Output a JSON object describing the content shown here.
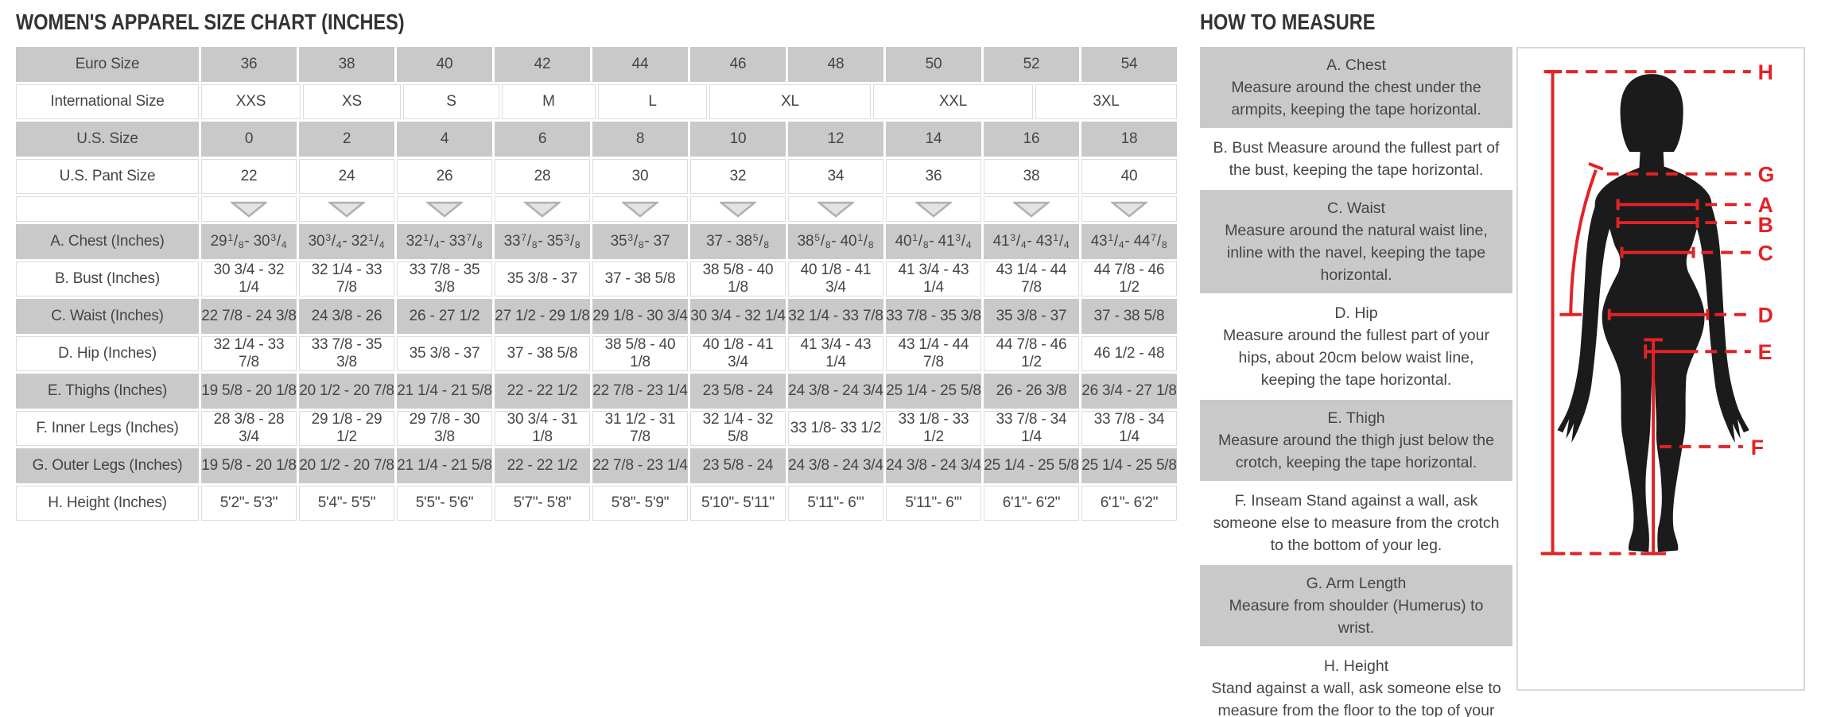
{
  "chart": {
    "title": "WOMEN'S APPAREL SIZE CHART (INCHES)",
    "header_rows": {
      "euro": {
        "label": "Euro Size",
        "values": [
          "36",
          "38",
          "40",
          "42",
          "44",
          "46",
          "48",
          "50",
          "52",
          "54"
        ]
      },
      "international": {
        "label": "International Size",
        "values": [
          "XXS",
          "XS",
          "S",
          "M",
          "L",
          "XL",
          "XXL",
          "3XL"
        ]
      },
      "us": {
        "label": "U.S. Size",
        "values": [
          "0",
          "2",
          "4",
          "6",
          "8",
          "10",
          "12",
          "14",
          "16",
          "18"
        ]
      },
      "pant": {
        "label": "U.S. Pant Size",
        "values": [
          "22",
          "24",
          "26",
          "28",
          "30",
          "32",
          "34",
          "36",
          "38",
          "40"
        ]
      }
    },
    "dropdown_icon": "triangle-down",
    "measurement_rows": [
      {
        "label": "A. Chest (Inches)",
        "fractions": true,
        "values": [
          "29 1/8 - 30 3/4",
          "30 3/4 - 32 1/4",
          "32 1/4 - 33 7/8",
          "33 7/8 - 35 3/8",
          "35 3/8 - 37",
          "37 - 38 5/8",
          "38 5/8 - 40 1/8",
          "40 1/8 - 41 3/4",
          "41 3/4 - 43 1/4",
          "43 1/4 - 44 7/8"
        ]
      },
      {
        "label": "B. Bust (Inches)",
        "fractions": false,
        "values": [
          "30 3/4 - 32 1/4",
          "32 1/4 - 33 7/8",
          "33 7/8 - 35 3/8",
          "35 3/8 - 37",
          "37 - 38 5/8",
          "38 5/8 - 40 1/8",
          "40 1/8 - 41 3/4",
          "41 3/4 - 43 1/4",
          "43 1/4 - 44 7/8",
          "44 7/8 - 46 1/2"
        ]
      },
      {
        "label": "C. Waist (Inches)",
        "fractions": false,
        "values": [
          "22 7/8 - 24 3/8",
          "24 3/8 - 26",
          "26 - 27 1/2",
          "27 1/2 - 29 1/8",
          "29 1/8 - 30 3/4",
          "30 3/4 - 32 1/4",
          "32 1/4 - 33 7/8",
          "33 7/8 - 35 3/8",
          "35 3/8 - 37",
          "37 - 38 5/8"
        ]
      },
      {
        "label": "D. Hip (Inches)",
        "fractions": false,
        "values": [
          "32 1/4 - 33 7/8",
          "33 7/8 - 35 3/8",
          "35 3/8 - 37",
          "37 - 38 5/8",
          "38 5/8 - 40 1/8",
          "40 1/8 - 41 3/4",
          "41 3/4 - 43 1/4",
          "43 1/4 - 44 7/8",
          "44 7/8 - 46 1/2",
          "46 1/2 - 48"
        ]
      },
      {
        "label": "E. Thighs (Inches)",
        "fractions": false,
        "values": [
          "19 5/8 - 20 1/8",
          "20 1/2 - 20 7/8",
          "21 1/4 - 21 5/8",
          "22 - 22 1/2",
          "22 7/8 - 23 1/4",
          "23 5/8 - 24",
          "24 3/8 - 24 3/4",
          "25 1/4 - 25 5/8",
          "26 - 26 3/8",
          "26 3/4 - 27 1/8"
        ]
      },
      {
        "label": "F. Inner Legs (Inches)",
        "fractions": false,
        "values": [
          "28 3/8 - 28 3/4",
          "29 1/8 - 29 1/2",
          "29 7/8 - 30 3/8",
          "30 3/4 - 31 1/8",
          "31 1/2 - 31 7/8",
          "32 1/4 - 32 5/8",
          "33 1/8- 33 1/2",
          "33 1/8 - 33 1/2",
          "33 7/8 - 34 1/4",
          "33 7/8 - 34 1/4"
        ]
      },
      {
        "label": "G. Outer Legs (Inches)",
        "fractions": false,
        "values": [
          "19 5/8 - 20 1/8",
          "20 1/2 - 20 7/8",
          "21 1/4 - 21 5/8",
          "22 - 22 1/2",
          "22 7/8 - 23 1/4",
          "23 5/8 - 24",
          "24 3/8 - 24 3/4",
          "24 3/8 - 24 3/4",
          "25 1/4 - 25 5/8",
          "25 1/4 - 25 5/8"
        ]
      },
      {
        "label": "H. Height (Inches)",
        "fractions": false,
        "values": [
          "5'2\"- 5'3\"",
          "5'4\"- 5'5\"",
          "5'5\"- 5'6\"",
          "5'7\"- 5'8\"",
          "5'8\"- 5'9\"",
          "5'10\"- 5'11\"",
          "5'11\"- 6'\"",
          "5'11\"- 6'\"",
          "6'1\"- 6'2\"",
          "6'1\"- 6'2\""
        ]
      }
    ]
  },
  "measure_guide": {
    "title": "HOW TO MEASURE",
    "steps": [
      {
        "heading": "A. Chest",
        "text": "Measure around the chest under the armpits, keeping the tape horizontal.",
        "inline": false
      },
      {
        "heading": "B. Bust",
        "text": "Measure around the fullest part of the bust, keeping the tape horizontal.",
        "inline": true
      },
      {
        "heading": "C. Waist",
        "text": "Measure around the natural waist line, inline with the navel, keeping the tape horizontal.",
        "inline": false
      },
      {
        "heading": "D. Hip",
        "text": "Measure around the fullest part of your hips, about 20cm below waist line, keeping the tape horizontal.",
        "inline": false
      },
      {
        "heading": "E. Thigh",
        "text": "Measure around the thigh just below the crotch, keeping the tape horizontal.",
        "inline": false
      },
      {
        "heading": "F. Inseam",
        "text": "Stand against a wall, ask someone else to measure from the crotch to the bottom of your leg.",
        "inline": true
      },
      {
        "heading": "G. Arm Length",
        "text": "Measure from shoulder (Humerus) to wrist.",
        "inline": false
      },
      {
        "heading": "H. Height",
        "text": "Stand against a wall, ask someone else to measure from the floor to the top of your head, keeping the tape vertical.",
        "inline": false
      }
    ],
    "diagram_labels": [
      "H",
      "G",
      "A",
      "B",
      "C",
      "D",
      "E",
      "F"
    ],
    "colors": {
      "accent_red": "#e32225",
      "silhouette": "#1b1b1b",
      "block_gray": "#c9c9c9"
    }
  }
}
